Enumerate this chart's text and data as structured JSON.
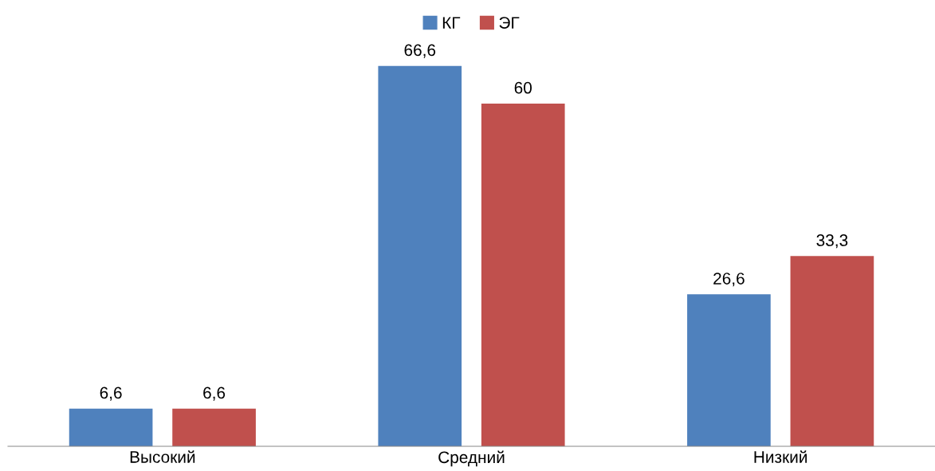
{
  "chart_data": {
    "type": "bar",
    "categories": [
      "Высокий",
      "Средний",
      "Низкий"
    ],
    "series": [
      {
        "name": "КГ",
        "color": "#4f81bd",
        "values": [
          6.6,
          66.6,
          26.6
        ],
        "value_labels": [
          "6,6",
          "66,6",
          "26,6"
        ]
      },
      {
        "name": "ЭГ",
        "color": "#c0504d",
        "values": [
          6.6,
          60,
          33.3
        ],
        "value_labels": [
          "6,6",
          "60",
          "33,3"
        ]
      }
    ],
    "tick_labels": "x",
    "legend": "top",
    "grid": false
  }
}
